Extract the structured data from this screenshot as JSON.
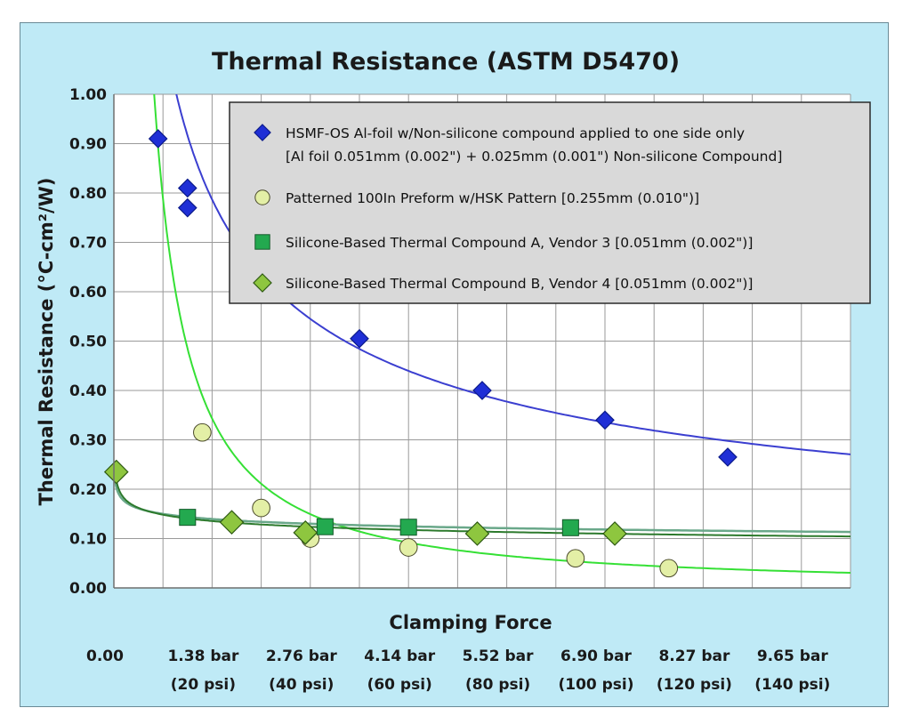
{
  "chart_data": {
    "type": "scatter",
    "title": "Thermal Resistance (ASTM D5470)",
    "xlabel": "Clamping Force",
    "ylabel": "Thermal Resistance (°C-cm²/W)",
    "xlim": [
      0,
      150
    ],
    "ylim": [
      0,
      1.0
    ],
    "grid": true,
    "legend_position": "top-right",
    "x_tick_values": [
      0,
      20,
      40,
      60,
      80,
      100,
      120,
      140
    ],
    "x_tick_labels": [
      [
        "0.00",
        ""
      ],
      [
        "1.38 bar",
        "(20 psi)"
      ],
      [
        "2.76 bar",
        "(40 psi)"
      ],
      [
        "4.14 bar",
        "(60 psi)"
      ],
      [
        "5.52 bar",
        "(80 psi)"
      ],
      [
        "6.90 bar",
        "(100 psi)"
      ],
      [
        "8.27 bar",
        "(120 psi)"
      ],
      [
        "9.65 bar",
        "(140 psi)"
      ]
    ],
    "y_ticks": [
      0,
      0.1,
      0.2,
      0.3,
      0.4,
      0.5,
      0.6,
      0.7,
      0.8,
      0.9,
      1.0
    ],
    "y_tick_labels": [
      "0.00",
      "0.10",
      "0.20",
      "0.30",
      "0.40",
      "0.50",
      "0.60",
      "0.70",
      "0.80",
      "0.90",
      "1.00"
    ],
    "series": [
      {
        "name": "HSMF-OS Al-foil w/Non-silicone compound applied to one side only",
        "name_line2": "[Al foil 0.051mm (0.002\") + 0.025mm (0.001\") Non-silicone Compound]",
        "marker": "diamond",
        "color": "#1f2fd6",
        "trend_color": "#3b3fd0",
        "points": [
          [
            9,
            0.91
          ],
          [
            15,
            0.81
          ],
          [
            15,
            0.77
          ],
          [
            50,
            0.505
          ],
          [
            75,
            0.4
          ],
          [
            100,
            0.34
          ],
          [
            125,
            0.265
          ]
        ],
        "trend": {
          "form": "power",
          "a": 3.85,
          "b": -0.53,
          "x_from": 9.7,
          "x_to": 150
        }
      },
      {
        "name": "Patterned 100In Preform w/HSK Pattern  [0.255mm (0.010\")]",
        "marker": "circle",
        "color": "#e3efa6",
        "trend_color": "#35e035",
        "points": [
          [
            18,
            0.315
          ],
          [
            30,
            0.162
          ],
          [
            40,
            0.1
          ],
          [
            60,
            0.082
          ],
          [
            94,
            0.06
          ],
          [
            113,
            0.04
          ]
        ],
        "trend": {
          "form": "power",
          "a": 12.5,
          "b": -1.2,
          "x_from": 5.2,
          "x_to": 150
        }
      },
      {
        "name": "Silicone-Based Thermal Compound A, Vendor 3 [0.051mm (0.002\")]",
        "marker": "square",
        "color": "#23a94f",
        "trend_color": "#6aa88a",
        "points": [
          [
            15,
            0.143
          ],
          [
            43,
            0.124
          ],
          [
            60,
            0.123
          ],
          [
            93,
            0.122
          ]
        ],
        "trend": {
          "form": "power",
          "a": 0.19,
          "b": -0.103,
          "x_from": 0.3,
          "x_to": 150
        }
      },
      {
        "name": "Silicone-Based Thermal Compound B, Vendor 4 [0.051mm (0.002\")]",
        "marker": "diamond",
        "color": "#8ec63f",
        "trend_color": "#2d7a2d",
        "points": [
          [
            0.5,
            0.235
          ],
          [
            24,
            0.133
          ],
          [
            39,
            0.112
          ],
          [
            74,
            0.11
          ],
          [
            102,
            0.11
          ]
        ],
        "trend": {
          "form": "power",
          "a": 0.2,
          "b": -0.13,
          "x_from": 0.3,
          "x_to": 150
        }
      }
    ]
  }
}
